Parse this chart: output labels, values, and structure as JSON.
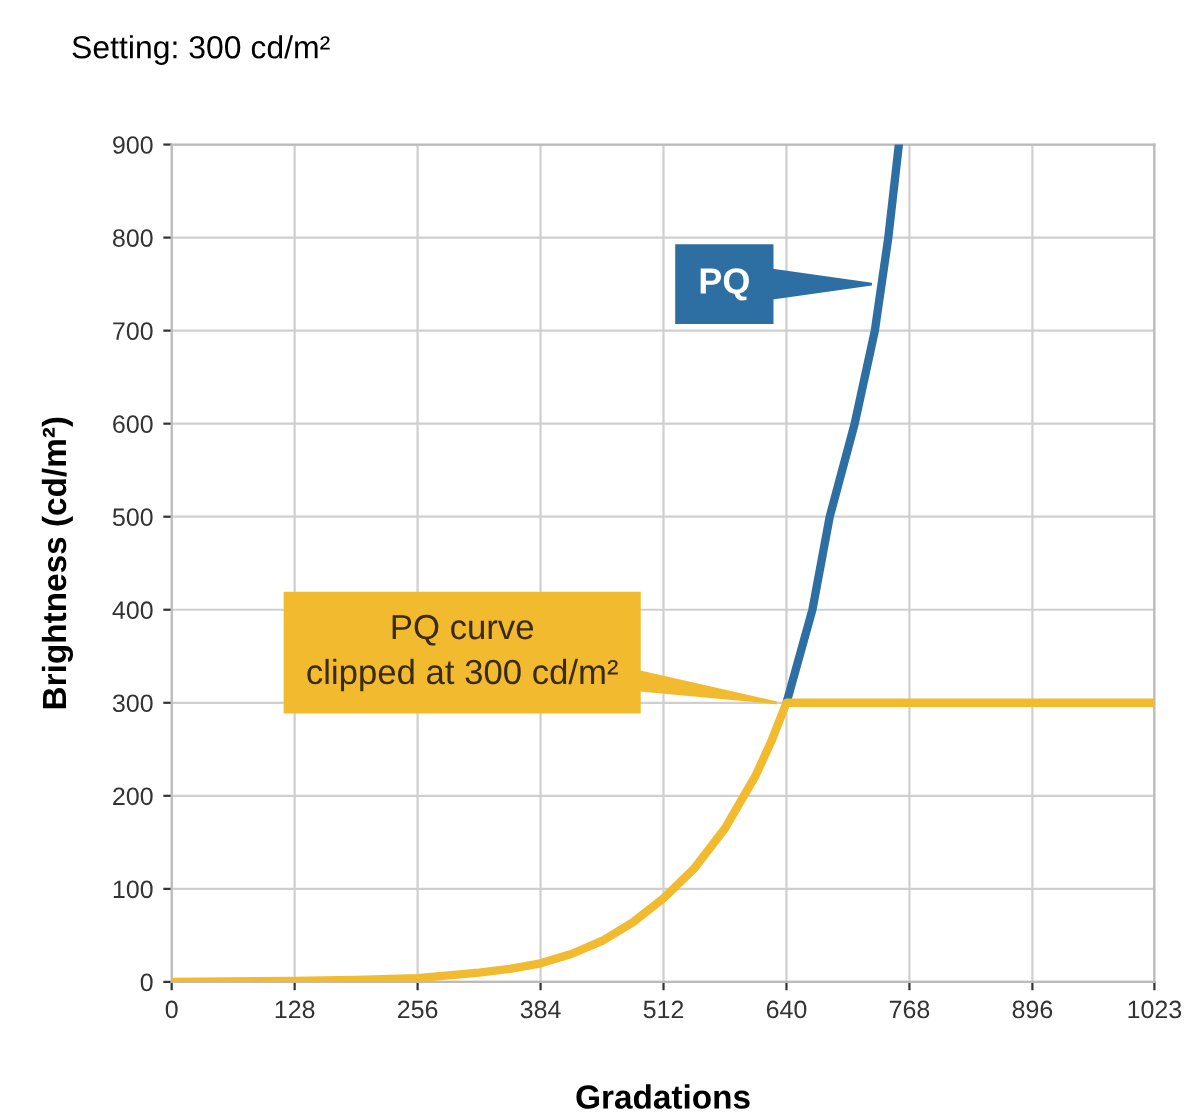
{
  "chart_data": {
    "type": "line",
    "title": "Setting: 300 cd/m²",
    "xlabel": "Gradations",
    "ylabel": "Brightness (cd/m²)",
    "series": [
      {
        "name": "PQ",
        "color": "#2e6fa3",
        "x": [
          640,
          667,
          685,
          711,
          732,
          746,
          757
        ],
        "values": [
          300,
          400,
          500,
          600,
          700,
          800,
          900
        ]
      },
      {
        "name": "PQ curve\nclipped at 300 cd/m²",
        "color": "#f2bb2f",
        "x": [
          0,
          128,
          192,
          256,
          320,
          352,
          384,
          416,
          448,
          480,
          512,
          544,
          576,
          608,
          624,
          640,
          768,
          896,
          1023
        ],
        "values": [
          0,
          1,
          2,
          4,
          10,
          14,
          20,
          30,
          44,
          64,
          90,
          122,
          165,
          222,
          258,
          300,
          300,
          300,
          300
        ]
      }
    ],
    "xlim": [
      0,
      1023
    ],
    "ylim": [
      0,
      900
    ],
    "xticks": [
      0,
      128,
      256,
      384,
      512,
      640,
      768,
      896,
      1023
    ],
    "yticks": [
      0,
      100,
      200,
      300,
      400,
      500,
      600,
      700,
      800,
      900
    ],
    "grid": true,
    "legend": false,
    "marker": "none",
    "line_style": "solid"
  }
}
